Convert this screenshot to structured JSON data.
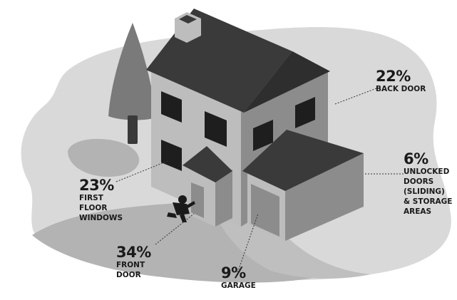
{
  "chart_data": {
    "type": "table",
    "items": [
      {
        "id": "back_door",
        "percent": "22%",
        "label": "BACK DOOR",
        "value": 22
      },
      {
        "id": "first_floor_windows",
        "percent": "23%",
        "label": "FIRST\nFLOOR\nWINDOWS",
        "value": 23
      },
      {
        "id": "unlocked_doors",
        "percent": "6%",
        "label": "UNLOCKED\nDOORS\n(SLIDING)\n& STORAGE\nAREAS",
        "value": 6
      },
      {
        "id": "front_door",
        "percent": "34%",
        "label": "FRONT\nDOOR",
        "value": 34
      },
      {
        "id": "garage",
        "percent": "9%",
        "label": "GARAGE",
        "value": 9
      }
    ]
  },
  "colors": {
    "yard_light": "#d9d9d9",
    "yard_mid": "#b3b3b3",
    "wall_light": "#bdbdbd",
    "wall_dark": "#8c8c8c",
    "roof_dark": "#3a3a3a",
    "window": "#1e1e1e",
    "tree": "#7a7a7a",
    "text": "#1a1a1a"
  }
}
